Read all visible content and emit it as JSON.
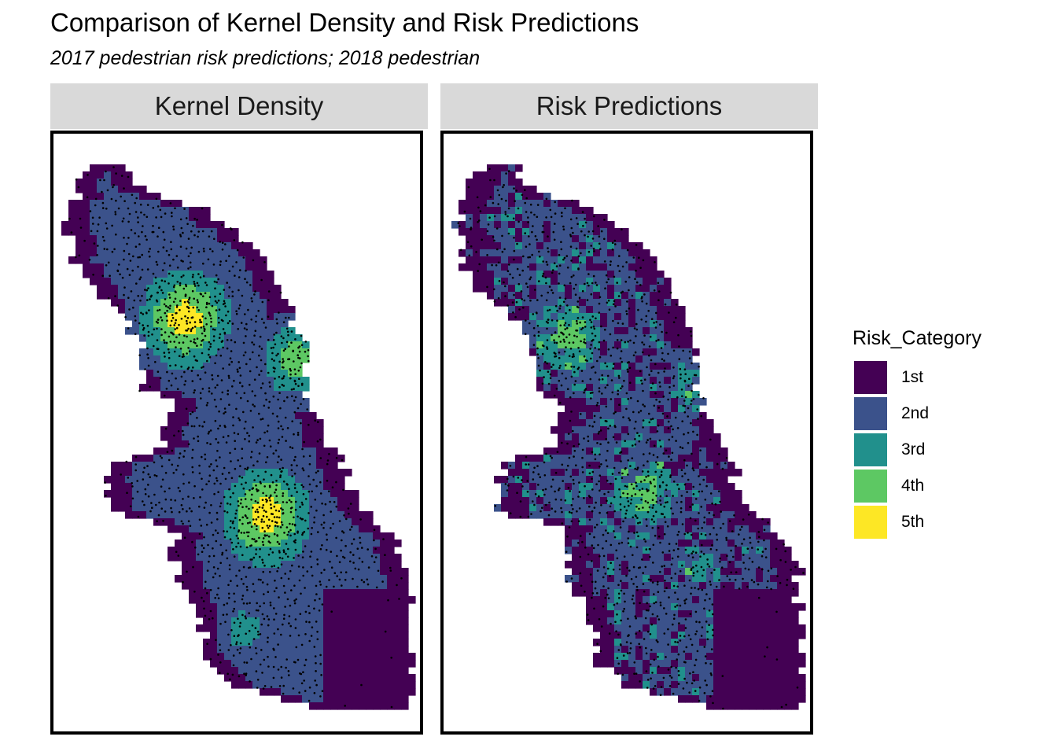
{
  "title": "Comparison of Kernel Density and Risk Predictions",
  "subtitle": "2017 pedestrian risk predictions; 2018 pedestrian",
  "panels": [
    {
      "label": "Kernel Density"
    },
    {
      "label": "Risk Predictions"
    }
  ],
  "legend": {
    "title": "Risk_Category",
    "items": [
      {
        "label": "1st",
        "color": "#440154"
      },
      {
        "label": "2nd",
        "color": "#3b528b"
      },
      {
        "label": "3rd",
        "color": "#21908c"
      },
      {
        "label": "4th",
        "color": "#5dc863"
      },
      {
        "label": "5th",
        "color": "#fde725"
      }
    ]
  },
  "map": {
    "point_color": "#000000",
    "kernel_hotspots": [
      {
        "center": [
          0.36,
          0.31
        ],
        "peak": 4
      },
      {
        "center": [
          0.58,
          0.64
        ],
        "peak": 4
      },
      {
        "center": [
          0.66,
          0.38
        ],
        "peak": 3
      },
      {
        "center": [
          0.52,
          0.83
        ],
        "peak": 2
      }
    ],
    "risk_hotspots": [
      {
        "center": [
          0.34,
          0.34
        ],
        "peak": 3
      },
      {
        "center": [
          0.55,
          0.6
        ],
        "peak": 3
      },
      {
        "center": [
          0.66,
          0.42
        ],
        "peak": 2
      },
      {
        "center": [
          0.7,
          0.72
        ],
        "peak": 2
      }
    ]
  }
}
